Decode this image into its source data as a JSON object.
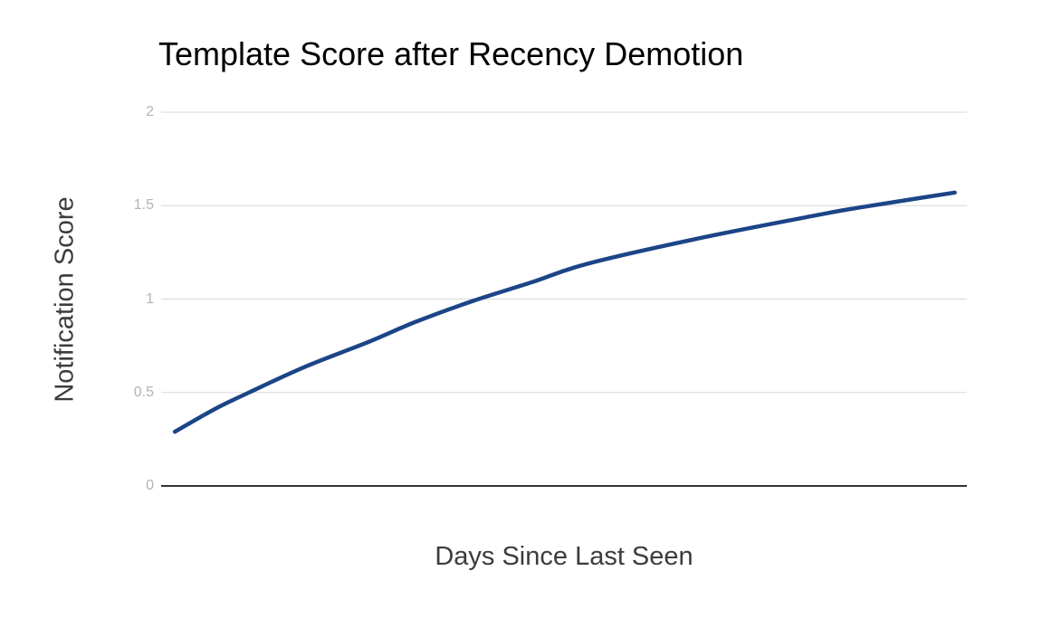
{
  "chart_data": {
    "type": "line",
    "title": "Template Score after Recency Demotion",
    "xlabel": "Days Since Last Seen",
    "ylabel": "Notification Score",
    "ylim": [
      0,
      2
    ],
    "yticks": [
      {
        "value": 0,
        "label": "0"
      },
      {
        "value": 0.5,
        "label": "0.5"
      },
      {
        "value": 1,
        "label": "1"
      },
      {
        "value": 1.5,
        "label": "1.5"
      },
      {
        "value": 2,
        "label": "2"
      }
    ],
    "x_tick_labels": [],
    "grid": "horizontal-only",
    "legend": "none",
    "background": "#ffffff",
    "colors": {
      "line": "#1c4587",
      "gridline": "#d9d9d9",
      "zero_axis": "#333333",
      "tick_label": "#b3b3b3",
      "axis_title": "#3c3c3c",
      "title": "#000000"
    },
    "series": [
      {
        "name": "Notification Score",
        "note": "x_frac is the horizontal position as a fraction of the plot width; the x-axis shows no numeric tick labels",
        "points": [
          {
            "x_frac": 0.017,
            "y": 0.29
          },
          {
            "x_frac": 0.066,
            "y": 0.41
          },
          {
            "x_frac": 0.109,
            "y": 0.5
          },
          {
            "x_frac": 0.18,
            "y": 0.64
          },
          {
            "x_frac": 0.257,
            "y": 0.77
          },
          {
            "x_frac": 0.317,
            "y": 0.88
          },
          {
            "x_frac": 0.387,
            "y": 0.99
          },
          {
            "x_frac": 0.46,
            "y": 1.09
          },
          {
            "x_frac": 0.53,
            "y": 1.19
          },
          {
            "x_frac": 0.673,
            "y": 1.33
          },
          {
            "x_frac": 0.815,
            "y": 1.45
          },
          {
            "x_frac": 0.867,
            "y": 1.49
          },
          {
            "x_frac": 0.985,
            "y": 1.57
          }
        ]
      }
    ]
  }
}
